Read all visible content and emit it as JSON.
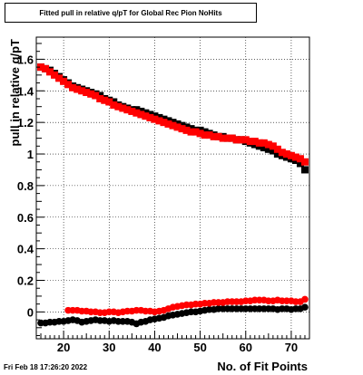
{
  "timestamp": "Fri Feb 18 17:26:20 2022",
  "colors": {
    "series_1": "#000000",
    "series_2": "#ff0000",
    "grid": "#000000",
    "frame": "#000000"
  },
  "chart_data": {
    "type": "scatter",
    "title": "Fitted pull in relative q/pT for Global Rec Pion NoHits",
    "xlabel": "No. of Fit Points",
    "ylabel": "pull in relative q/pT",
    "xlim": [
      14,
      74
    ],
    "ylim": [
      -0.17,
      1.74
    ],
    "x_ticks": [
      20,
      30,
      40,
      50,
      60,
      70
    ],
    "y_ticks": [
      0,
      0.2,
      0.4,
      0.6,
      0.8,
      1,
      1.2,
      1.4,
      1.6
    ],
    "y_tick_labels": [
      "0",
      "0.2",
      "0.4",
      "0.6",
      "0.8",
      "1",
      "1.2",
      "1.4",
      "1.6"
    ],
    "grid": true,
    "legend": "none",
    "series": [
      {
        "color": "#000000",
        "marker": "square",
        "x": [
          15,
          16,
          17,
          18,
          19,
          20,
          21,
          22,
          23,
          24,
          25,
          26,
          27,
          28,
          29,
          30,
          31,
          32,
          33,
          34,
          35,
          36,
          37,
          38,
          39,
          40,
          41,
          42,
          43,
          44,
          45,
          46,
          47,
          48,
          49,
          50,
          51,
          52,
          53,
          54,
          55,
          56,
          57,
          58,
          59,
          60,
          61,
          62,
          63,
          64,
          65,
          66,
          67,
          68,
          69,
          70,
          71,
          72,
          73
        ],
        "y": [
          1.55,
          1.54,
          1.53,
          1.51,
          1.49,
          1.47,
          1.45,
          1.43,
          1.42,
          1.41,
          1.4,
          1.39,
          1.38,
          1.37,
          1.35,
          1.34,
          1.33,
          1.31,
          1.3,
          1.29,
          1.28,
          1.28,
          1.27,
          1.26,
          1.25,
          1.24,
          1.23,
          1.22,
          1.21,
          1.2,
          1.19,
          1.18,
          1.17,
          1.16,
          1.15,
          1.15,
          1.14,
          1.13,
          1.12,
          1.11,
          1.11,
          1.1,
          1.1,
          1.09,
          1.09,
          1.08,
          1.07,
          1.06,
          1.05,
          1.04,
          1.03,
          1.02,
          1.0,
          0.99,
          0.98,
          0.97,
          0.96,
          0.94,
          0.9
        ]
      },
      {
        "color": "#000000",
        "marker": "circle",
        "x": [
          15,
          16,
          17,
          18,
          19,
          20,
          21,
          22,
          23,
          24,
          25,
          26,
          27,
          28,
          29,
          30,
          31,
          32,
          33,
          34,
          35,
          36,
          37,
          38,
          39,
          40,
          41,
          42,
          43,
          44,
          45,
          46,
          47,
          48,
          49,
          50,
          51,
          52,
          53,
          54,
          55,
          56,
          57,
          58,
          59,
          60,
          61,
          62,
          63,
          64,
          65,
          66,
          67,
          68,
          69,
          70,
          71,
          72,
          73
        ],
        "y": [
          -0.07,
          -0.07,
          -0.065,
          -0.065,
          -0.06,
          -0.06,
          -0.055,
          -0.05,
          -0.055,
          -0.065,
          -0.06,
          -0.055,
          -0.05,
          -0.055,
          -0.055,
          -0.06,
          -0.055,
          -0.06,
          -0.06,
          -0.06,
          -0.065,
          -0.075,
          -0.065,
          -0.06,
          -0.05,
          -0.045,
          -0.04,
          -0.035,
          -0.025,
          -0.02,
          -0.015,
          -0.01,
          -0.005,
          0.0,
          0.0,
          0.005,
          0.01,
          0.015,
          0.015,
          0.02,
          0.02,
          0.02,
          0.02,
          0.02,
          0.02,
          0.02,
          0.02,
          0.02,
          0.02,
          0.02,
          0.02,
          0.02,
          0.015,
          0.02,
          0.02,
          0.015,
          0.02,
          0.02,
          0.03
        ]
      },
      {
        "color": "#ff0000",
        "marker": "square",
        "x": [
          15,
          16,
          17,
          18,
          19,
          20,
          21,
          22,
          23,
          24,
          25,
          26,
          27,
          28,
          29,
          30,
          31,
          32,
          33,
          34,
          35,
          36,
          37,
          38,
          39,
          40,
          41,
          42,
          43,
          44,
          45,
          46,
          47,
          48,
          49,
          50,
          51,
          52,
          53,
          54,
          55,
          56,
          57,
          58,
          59,
          60,
          61,
          62,
          63,
          64,
          65,
          66,
          67,
          68,
          69,
          70,
          71,
          72,
          73
        ],
        "y": [
          1.55,
          1.54,
          1.52,
          1.5,
          1.48,
          1.46,
          1.44,
          1.42,
          1.41,
          1.4,
          1.39,
          1.38,
          1.37,
          1.35,
          1.34,
          1.33,
          1.31,
          1.3,
          1.29,
          1.28,
          1.27,
          1.26,
          1.25,
          1.24,
          1.23,
          1.22,
          1.21,
          1.2,
          1.19,
          1.18,
          1.17,
          1.16,
          1.15,
          1.14,
          1.14,
          1.13,
          1.12,
          1.12,
          1.11,
          1.11,
          1.1,
          1.1,
          1.1,
          1.09,
          1.09,
          1.09,
          1.08,
          1.08,
          1.07,
          1.07,
          1.06,
          1.05,
          1.03,
          1.01,
          1.0,
          0.99,
          0.98,
          0.97,
          0.95
        ]
      },
      {
        "color": "#ff0000",
        "marker": "circle",
        "x": [
          21,
          22,
          23,
          24,
          25,
          26,
          27,
          28,
          29,
          30,
          31,
          32,
          33,
          34,
          35,
          36,
          37,
          38,
          39,
          40,
          41,
          42,
          43,
          44,
          45,
          46,
          47,
          48,
          49,
          50,
          51,
          52,
          53,
          54,
          55,
          56,
          57,
          58,
          59,
          60,
          61,
          62,
          63,
          64,
          65,
          66,
          67,
          68,
          69,
          70,
          71,
          72,
          73
        ],
        "y": [
          0.01,
          0.01,
          0.01,
          0.005,
          0.005,
          0.0,
          0.0,
          -0.005,
          -0.005,
          0.0,
          0.0,
          -0.005,
          0.0,
          0.005,
          0.005,
          0.01,
          0.01,
          0.005,
          0.005,
          0.0,
          0.005,
          0.01,
          0.02,
          0.03,
          0.035,
          0.04,
          0.045,
          0.045,
          0.05,
          0.05,
          0.055,
          0.055,
          0.06,
          0.06,
          0.06,
          0.065,
          0.065,
          0.065,
          0.065,
          0.07,
          0.07,
          0.075,
          0.075,
          0.075,
          0.07,
          0.07,
          0.075,
          0.07,
          0.07,
          0.07,
          0.065,
          0.065,
          0.08
        ]
      }
    ]
  }
}
